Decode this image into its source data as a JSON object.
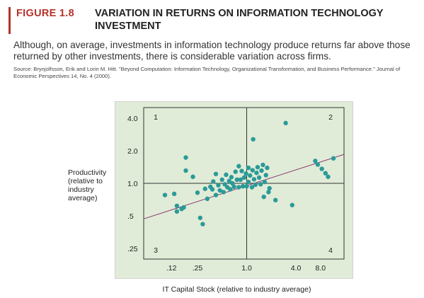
{
  "figure": {
    "tag": "FIGURE 1.8",
    "title": "VARIATION IN RETURNS ON INFORMATION TECHNOLOGY INVESTMENT",
    "description": "Although, on average, investments in information technology produce returns far above those returned by other investments, there is considerable variation across firms.",
    "source": "Source: Brynjolfsson, Erik and Lorin M. Hitt. \"Beyond Computation: Information Technology, Organizational Transformation, and Business Performance.\" Journal of Economic Perspectives 14, No. 4 (2000)."
  },
  "colors": {
    "accent": "#b5322a",
    "plot_background": "#e0ecd7",
    "marker": "#2a9a98",
    "trend_line": "#8a3a72",
    "axis_line": "#333333"
  },
  "chart_data": {
    "type": "scatter",
    "title": "",
    "xlabel": "IT Capital Stock (relative to industry average)",
    "ylabel": "Productivity (relative to industry average)",
    "x_scale": "log",
    "y_scale": "log",
    "xlim": [
      0.055,
      15.5
    ],
    "ylim": [
      0.2,
      5.0
    ],
    "x_ticks": [
      {
        "value": 0.12,
        "label": ".12"
      },
      {
        "value": 0.25,
        "label": ".25"
      },
      {
        "value": 1.0,
        "label": "1.0"
      },
      {
        "value": 4.0,
        "label": "4.0"
      },
      {
        "value": 8.0,
        "label": "8.0"
      }
    ],
    "y_ticks": [
      {
        "value": 4.0,
        "label": "4.0"
      },
      {
        "value": 2.0,
        "label": "2.0"
      },
      {
        "value": 1.0,
        "label": "1.0"
      },
      {
        "value": 0.5,
        "label": ".5"
      },
      {
        "value": 0.25,
        "label": ".25"
      }
    ],
    "reference_lines": {
      "x": 1.0,
      "y": 1.0
    },
    "quadrant_labels": [
      {
        "label": "1",
        "position": "top-left"
      },
      {
        "label": "2",
        "position": "top-right"
      },
      {
        "label": "3",
        "position": "bottom-left"
      },
      {
        "label": "4",
        "position": "bottom-right"
      }
    ],
    "trend_line": {
      "x": [
        0.055,
        15.5
      ],
      "y": [
        0.47,
        1.85
      ]
    },
    "series": [
      {
        "points": [
          {
            "x": 0.1,
            "y": 0.78
          },
          {
            "x": 0.13,
            "y": 0.8
          },
          {
            "x": 0.14,
            "y": 0.62
          },
          {
            "x": 0.14,
            "y": 0.55
          },
          {
            "x": 0.16,
            "y": 0.58
          },
          {
            "x": 0.17,
            "y": 0.6
          },
          {
            "x": 0.18,
            "y": 1.73
          },
          {
            "x": 0.18,
            "y": 1.31
          },
          {
            "x": 0.22,
            "y": 1.15
          },
          {
            "x": 0.25,
            "y": 0.82
          },
          {
            "x": 0.27,
            "y": 0.48
          },
          {
            "x": 0.29,
            "y": 0.42
          },
          {
            "x": 0.31,
            "y": 0.89
          },
          {
            "x": 0.33,
            "y": 0.72
          },
          {
            "x": 0.36,
            "y": 0.93
          },
          {
            "x": 0.38,
            "y": 0.88
          },
          {
            "x": 0.39,
            "y": 1.04
          },
          {
            "x": 0.42,
            "y": 1.22
          },
          {
            "x": 0.42,
            "y": 0.78
          },
          {
            "x": 0.45,
            "y": 0.96
          },
          {
            "x": 0.47,
            "y": 0.86
          },
          {
            "x": 0.5,
            "y": 1.08
          },
          {
            "x": 0.52,
            "y": 0.83
          },
          {
            "x": 0.54,
            "y": 0.98
          },
          {
            "x": 0.56,
            "y": 1.2
          },
          {
            "x": 0.58,
            "y": 0.92
          },
          {
            "x": 0.61,
            "y": 1.05
          },
          {
            "x": 0.63,
            "y": 0.88
          },
          {
            "x": 0.65,
            "y": 1.14
          },
          {
            "x": 0.67,
            "y": 1.0
          },
          {
            "x": 0.7,
            "y": 0.93
          },
          {
            "x": 0.73,
            "y": 1.28
          },
          {
            "x": 0.76,
            "y": 1.08
          },
          {
            "x": 0.8,
            "y": 0.92
          },
          {
            "x": 0.8,
            "y": 1.44
          },
          {
            "x": 0.84,
            "y": 1.08
          },
          {
            "x": 0.87,
            "y": 1.3
          },
          {
            "x": 0.9,
            "y": 0.94
          },
          {
            "x": 0.93,
            "y": 1.13
          },
          {
            "x": 0.98,
            "y": 1.23
          },
          {
            "x": 1.0,
            "y": 0.94
          },
          {
            "x": 1.05,
            "y": 1.03
          },
          {
            "x": 1.05,
            "y": 1.39
          },
          {
            "x": 1.1,
            "y": 1.18
          },
          {
            "x": 1.16,
            "y": 0.92
          },
          {
            "x": 1.18,
            "y": 1.32
          },
          {
            "x": 1.2,
            "y": 2.55
          },
          {
            "x": 1.23,
            "y": 1.09
          },
          {
            "x": 1.28,
            "y": 0.97
          },
          {
            "x": 1.32,
            "y": 1.25
          },
          {
            "x": 1.36,
            "y": 1.41
          },
          {
            "x": 1.42,
            "y": 1.13
          },
          {
            "x": 1.48,
            "y": 0.98
          },
          {
            "x": 1.52,
            "y": 1.31
          },
          {
            "x": 1.58,
            "y": 1.48
          },
          {
            "x": 1.62,
            "y": 0.75
          },
          {
            "x": 1.66,
            "y": 1.03
          },
          {
            "x": 1.72,
            "y": 1.19
          },
          {
            "x": 1.78,
            "y": 1.39
          },
          {
            "x": 1.85,
            "y": 0.83
          },
          {
            "x": 1.9,
            "y": 0.9
          },
          {
            "x": 2.25,
            "y": 0.7
          },
          {
            "x": 3.0,
            "y": 3.6
          },
          {
            "x": 3.6,
            "y": 0.63
          },
          {
            "x": 6.9,
            "y": 1.61
          },
          {
            "x": 7.4,
            "y": 1.49
          },
          {
            "x": 8.3,
            "y": 1.36
          },
          {
            "x": 9.2,
            "y": 1.24
          },
          {
            "x": 9.9,
            "y": 1.15
          },
          {
            "x": 11.5,
            "y": 1.7
          }
        ]
      }
    ]
  }
}
